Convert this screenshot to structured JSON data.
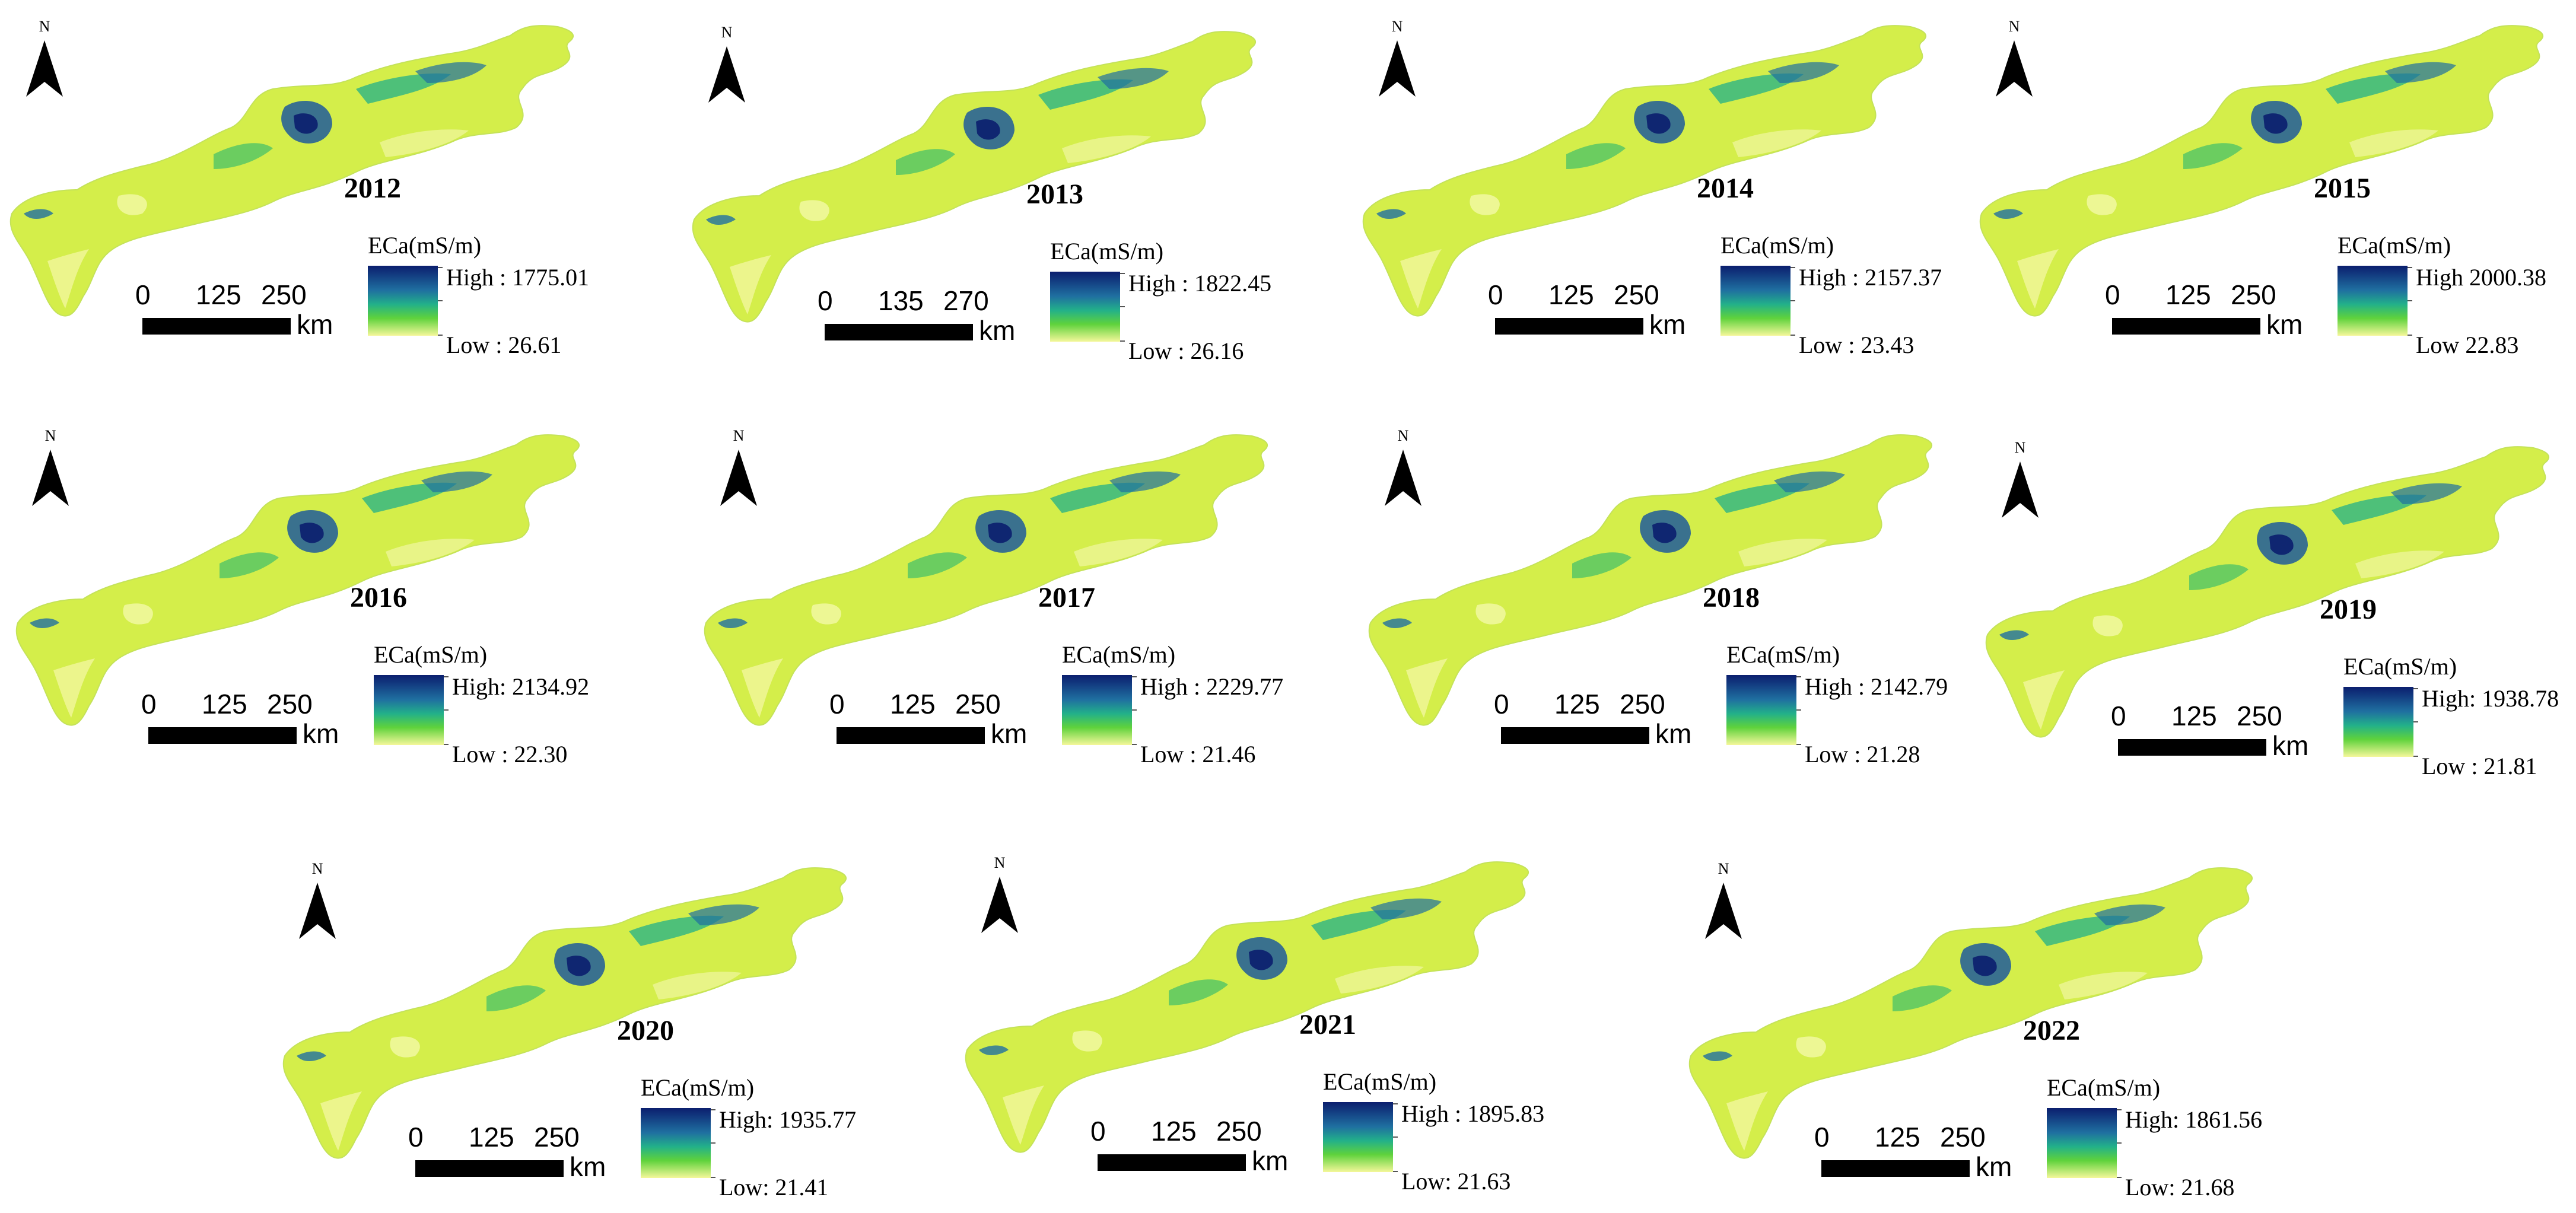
{
  "north_label": "N",
  "legend_title": "ECa(mS/m)",
  "scale_unit": "km",
  "colors": {
    "high": "#0b1e6e",
    "mid": "#22b08a",
    "low": "#f4f79a",
    "land": "#d4ee4a"
  },
  "panels": [
    {
      "year": "2012",
      "scale": [
        "0",
        "125",
        "250"
      ],
      "high": "High : 1775.01",
      "low": "Low : 26.61"
    },
    {
      "year": "2013",
      "scale": [
        "0",
        "135",
        "270"
      ],
      "high": "High : 1822.45",
      "low": "Low : 26.16"
    },
    {
      "year": "2014",
      "scale": [
        "0",
        "125",
        "250"
      ],
      "high": "High : 2157.37",
      "low": "Low : 23.43"
    },
    {
      "year": "2015",
      "scale": [
        "0",
        "125",
        "250"
      ],
      "high": "High   2000.38",
      "low": "Low   22.83"
    },
    {
      "year": "2016",
      "scale": [
        "0",
        "125",
        "250"
      ],
      "high": "High: 2134.92",
      "low": "Low : 22.30"
    },
    {
      "year": "2017",
      "scale": [
        "0",
        "125",
        "250"
      ],
      "high": "High : 2229.77",
      "low": "Low : 21.46"
    },
    {
      "year": "2018",
      "scale": [
        "0",
        "125",
        "250"
      ],
      "high": "High : 2142.79",
      "low": "Low : 21.28"
    },
    {
      "year": "2019",
      "scale": [
        "0",
        "125",
        "250"
      ],
      "high": "High: 1938.78",
      "low": "Low : 21.81"
    },
    {
      "year": "2020",
      "scale": [
        "0",
        "125",
        "250"
      ],
      "high": "High: 1935.77",
      "low": "Low: 21.41"
    },
    {
      "year": "2021",
      "scale": [
        "0",
        "125",
        "250"
      ],
      "high": "High : 1895.83",
      "low": "Low: 21.63"
    },
    {
      "year": "2022",
      "scale": [
        "0",
        "125",
        "250"
      ],
      "high": "High: 1861.56",
      "low": "Low: 21.68"
    }
  ]
}
